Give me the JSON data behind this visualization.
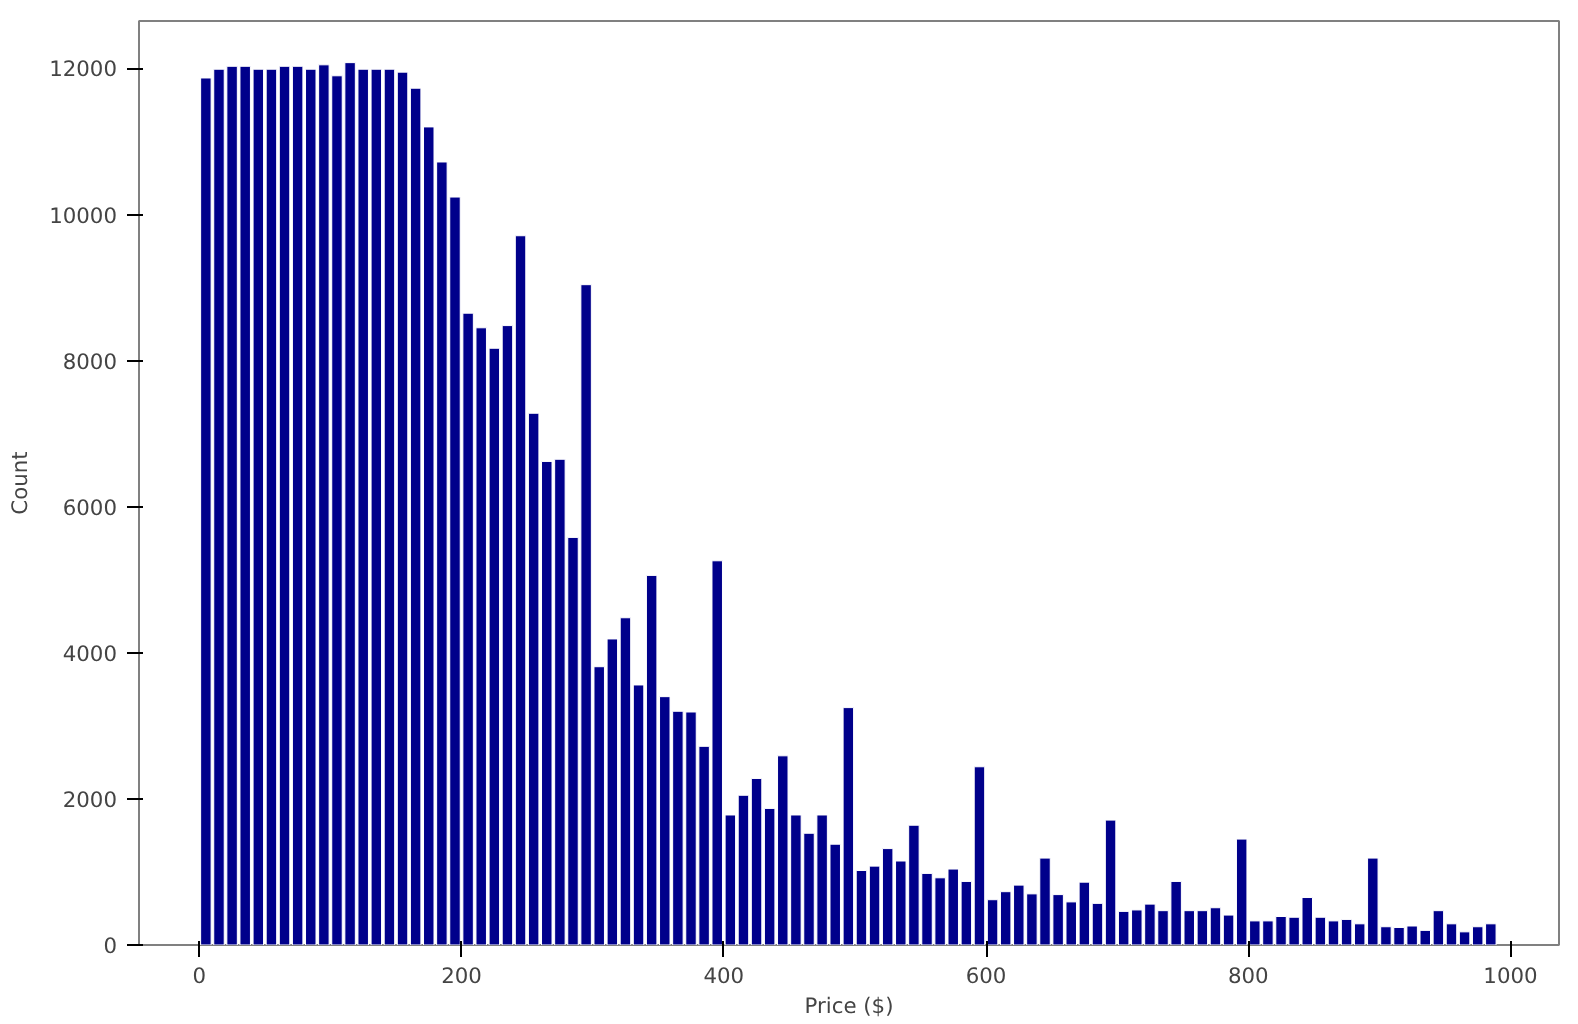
{
  "chart_data": {
    "type": "histogram",
    "xlabel": "Price ($)",
    "ylabel": "Count",
    "color": "#00008b",
    "bins": [
      0,
      10,
      20,
      30,
      40,
      50,
      60,
      70,
      80,
      90,
      100,
      110,
      120,
      130,
      140,
      150,
      160,
      170,
      180,
      190,
      200,
      210,
      220,
      230,
      240,
      250,
      260,
      270,
      280,
      290,
      300,
      310,
      320,
      330,
      340,
      350,
      360,
      370,
      380,
      390,
      400,
      410,
      420,
      430,
      440,
      450,
      460,
      470,
      480,
      490,
      500,
      510,
      520,
      530,
      540,
      550,
      560,
      570,
      580,
      590,
      600,
      610,
      620,
      630,
      640,
      650,
      660,
      670,
      680,
      690,
      700,
      710,
      720,
      730,
      740,
      750,
      760,
      770,
      780,
      790,
      800,
      810,
      820,
      830,
      840,
      850,
      860,
      870,
      880,
      890,
      900,
      910,
      920,
      930,
      940,
      950,
      960,
      970,
      980,
      990
    ],
    "values": [
      11870,
      11990,
      12030,
      12030,
      11990,
      11990,
      12030,
      12030,
      11990,
      12050,
      11900,
      12080,
      11990,
      11990,
      11990,
      11950,
      11730,
      11200,
      10720,
      10240,
      8650,
      8450,
      8170,
      8480,
      9710,
      7280,
      6620,
      6650,
      5580,
      9040,
      3810,
      4190,
      4480,
      3560,
      5060,
      3400,
      3200,
      3190,
      2720,
      5260,
      1780,
      2050,
      2280,
      1870,
      2590,
      1780,
      1530,
      1780,
      1380,
      3250,
      1020,
      1080,
      1320,
      1150,
      1640,
      980,
      920,
      1040,
      870,
      2440,
      620,
      730,
      820,
      700,
      1190,
      690,
      590,
      860,
      570,
      1710,
      460,
      480,
      560,
      470,
      870,
      470,
      470,
      510,
      410,
      1450,
      330,
      330,
      390,
      380,
      650,
      380,
      330,
      350,
      290,
      1190,
      250,
      240,
      260,
      200,
      470,
      290,
      180,
      250,
      290
    ],
    "xlim": [
      -46,
      1037
    ],
    "ylim": [
      0,
      12650
    ],
    "xticks": [
      0,
      200,
      400,
      600,
      800,
      1000
    ],
    "yticks": [
      0,
      2000,
      4000,
      6000,
      8000,
      10000,
      12000
    ],
    "grid": false
  }
}
